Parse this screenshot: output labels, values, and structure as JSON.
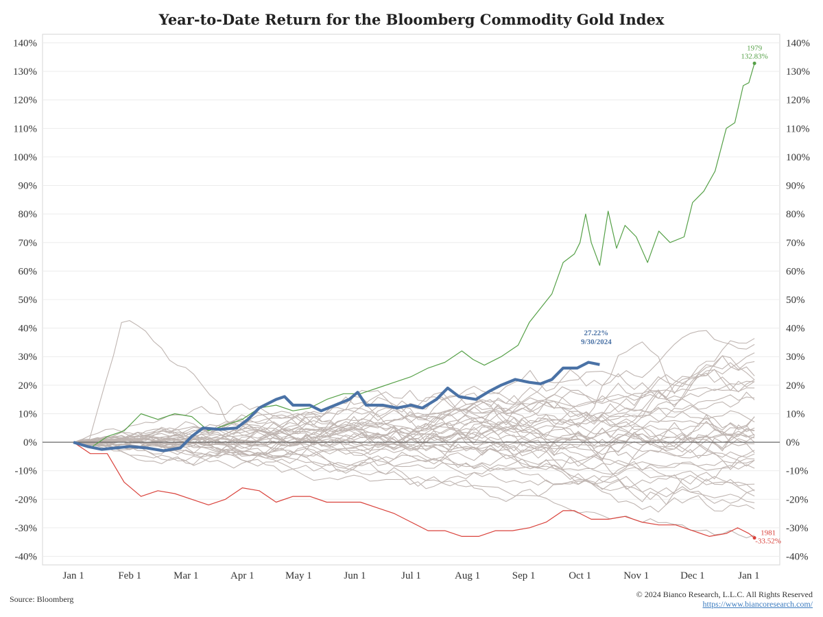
{
  "title": "Year-to-Date Return for the Bloomberg Commodity Gold Index",
  "source": "Source: Bloomberg",
  "copyright": "© 2024 Bianco Research, L.L.C. All Rights Reserved",
  "url": "https://www.biancoresearch.com/",
  "colors": {
    "current": "#4a72a6",
    "best": "#55a047",
    "worst": "#d9413a",
    "others": "#bfb5b1",
    "grid": "#ececec",
    "zero": "#555555"
  },
  "chart_data": {
    "type": "line",
    "ylim": [
      -43,
      143
    ],
    "yticks": [
      -40,
      -30,
      -20,
      -10,
      0,
      10,
      20,
      30,
      40,
      50,
      60,
      70,
      80,
      90,
      100,
      110,
      120,
      130,
      140
    ],
    "ytick_labels": [
      "-40%",
      "-30%",
      "-20%",
      "-10%",
      "0%",
      "10%",
      "20%",
      "30%",
      "40%",
      "50%",
      "60%",
      "70%",
      "80%",
      "90%",
      "100%",
      "110%",
      "120%",
      "130%",
      "140%"
    ],
    "xlim": [
      -0.55,
      12.55
    ],
    "xticks": [
      0,
      1,
      2,
      3,
      4,
      5,
      6,
      7,
      8,
      9,
      10,
      11,
      12
    ],
    "xtick_labels": [
      "Jan 1",
      "Feb 1",
      "Mar 1",
      "Apr 1",
      "May 1",
      "Jun 1",
      "Jul 1",
      "Aug 1",
      "Sep 1",
      "Oct 1",
      "Nov 1",
      "Dec 1",
      "Jan 1"
    ],
    "x_unit": "months since Jan 1",
    "series": [
      {
        "name": "2024",
        "role": "current",
        "points": [
          [
            0,
            0
          ],
          [
            0.25,
            -1.5
          ],
          [
            0.5,
            -2.5
          ],
          [
            0.75,
            -2
          ],
          [
            1,
            -1.5
          ],
          [
            1.3,
            -2
          ],
          [
            1.6,
            -3
          ],
          [
            1.9,
            -2
          ],
          [
            2.1,
            2
          ],
          [
            2.3,
            5
          ],
          [
            2.6,
            4.5
          ],
          [
            2.9,
            5
          ],
          [
            3.1,
            8
          ],
          [
            3.3,
            12
          ],
          [
            3.6,
            15
          ],
          [
            3.75,
            16
          ],
          [
            3.9,
            13
          ],
          [
            4.2,
            13
          ],
          [
            4.4,
            11
          ],
          [
            4.65,
            13
          ],
          [
            4.9,
            15
          ],
          [
            5.05,
            17.5
          ],
          [
            5.2,
            13
          ],
          [
            5.5,
            13
          ],
          [
            5.75,
            12
          ],
          [
            6,
            13
          ],
          [
            6.2,
            12
          ],
          [
            6.45,
            15
          ],
          [
            6.65,
            19
          ],
          [
            6.85,
            16
          ],
          [
            7.15,
            15
          ],
          [
            7.4,
            18
          ],
          [
            7.6,
            20
          ],
          [
            7.85,
            22
          ],
          [
            8.1,
            21
          ],
          [
            8.3,
            20.5
          ],
          [
            8.5,
            22
          ],
          [
            8.7,
            26
          ],
          [
            8.95,
            26
          ],
          [
            9.15,
            28
          ],
          [
            9.35,
            27.22
          ]
        ],
        "end_label": "27.22%",
        "end_date": "9/30/2024"
      },
      {
        "name": "1979",
        "role": "best",
        "points": [
          [
            0,
            0
          ],
          [
            0.3,
            -2
          ],
          [
            0.6,
            2
          ],
          [
            0.9,
            4
          ],
          [
            1.2,
            10
          ],
          [
            1.5,
            8
          ],
          [
            1.8,
            10
          ],
          [
            2.1,
            9
          ],
          [
            2.4,
            4
          ],
          [
            2.7,
            6
          ],
          [
            3,
            8
          ],
          [
            3.3,
            12
          ],
          [
            3.6,
            13
          ],
          [
            3.9,
            11
          ],
          [
            4.2,
            12
          ],
          [
            4.5,
            15
          ],
          [
            4.8,
            17
          ],
          [
            5.1,
            17
          ],
          [
            5.4,
            19
          ],
          [
            5.7,
            21
          ],
          [
            6,
            23
          ],
          [
            6.3,
            26
          ],
          [
            6.6,
            28
          ],
          [
            6.9,
            32
          ],
          [
            7.1,
            29
          ],
          [
            7.3,
            27
          ],
          [
            7.6,
            30
          ],
          [
            7.9,
            34
          ],
          [
            8.1,
            42
          ],
          [
            8.3,
            47
          ],
          [
            8.5,
            52
          ],
          [
            8.7,
            63
          ],
          [
            8.9,
            66
          ],
          [
            9,
            70
          ],
          [
            9.1,
            80
          ],
          [
            9.2,
            70
          ],
          [
            9.35,
            62
          ],
          [
            9.5,
            81
          ],
          [
            9.65,
            68
          ],
          [
            9.8,
            76
          ],
          [
            10,
            72
          ],
          [
            10.2,
            63
          ],
          [
            10.4,
            74
          ],
          [
            10.6,
            70
          ],
          [
            10.85,
            72
          ],
          [
            11,
            84
          ],
          [
            11.2,
            88
          ],
          [
            11.4,
            95
          ],
          [
            11.6,
            110
          ],
          [
            11.75,
            112
          ],
          [
            11.9,
            125
          ],
          [
            12,
            126
          ],
          [
            12.1,
            132.83
          ]
        ],
        "end_label": "132.83%"
      },
      {
        "name": "1981",
        "role": "worst",
        "points": [
          [
            0,
            0
          ],
          [
            0.3,
            -4
          ],
          [
            0.6,
            -4
          ],
          [
            0.9,
            -14
          ],
          [
            1.2,
            -19
          ],
          [
            1.5,
            -17
          ],
          [
            1.8,
            -18
          ],
          [
            2.1,
            -20
          ],
          [
            2.4,
            -22
          ],
          [
            2.7,
            -20
          ],
          [
            3,
            -16
          ],
          [
            3.3,
            -17
          ],
          [
            3.6,
            -21
          ],
          [
            3.9,
            -19
          ],
          [
            4.2,
            -19
          ],
          [
            4.5,
            -21
          ],
          [
            4.8,
            -21
          ],
          [
            5.1,
            -21
          ],
          [
            5.4,
            -23
          ],
          [
            5.7,
            -25
          ],
          [
            6,
            -28
          ],
          [
            6.3,
            -31
          ],
          [
            6.6,
            -31
          ],
          [
            6.9,
            -33
          ],
          [
            7.2,
            -33
          ],
          [
            7.5,
            -31
          ],
          [
            7.8,
            -31
          ],
          [
            8.1,
            -30
          ],
          [
            8.4,
            -28
          ],
          [
            8.7,
            -24
          ],
          [
            8.9,
            -24
          ],
          [
            9.2,
            -27
          ],
          [
            9.5,
            -27
          ],
          [
            9.8,
            -26
          ],
          [
            10.1,
            -28
          ],
          [
            10.4,
            -29
          ],
          [
            10.7,
            -29
          ],
          [
            11,
            -31
          ],
          [
            11.3,
            -33
          ],
          [
            11.6,
            -32
          ],
          [
            11.8,
            -30
          ],
          [
            12,
            -32
          ],
          [
            12.1,
            -33.52
          ]
        ],
        "end_label": "-33.52%"
      }
    ],
    "other_years_finals": [
      34,
      30,
      28,
      26,
      24,
      22,
      20,
      19,
      18,
      17,
      16,
      14,
      12,
      11,
      10,
      9,
      8,
      6,
      5,
      4,
      3,
      2,
      1,
      0,
      -1,
      -2,
      -3,
      -4,
      -5,
      -6,
      -8,
      -10,
      -12,
      -15,
      -18,
      -21,
      -25,
      -29
    ],
    "annotations": [
      {
        "series": "2024",
        "lines": [
          "27.22%",
          "9/30/2024"
        ]
      },
      {
        "series": "1979",
        "lines": [
          "1979",
          "132.83%"
        ]
      },
      {
        "series": "1981",
        "lines": [
          "1981",
          "-33.52%"
        ]
      }
    ]
  }
}
